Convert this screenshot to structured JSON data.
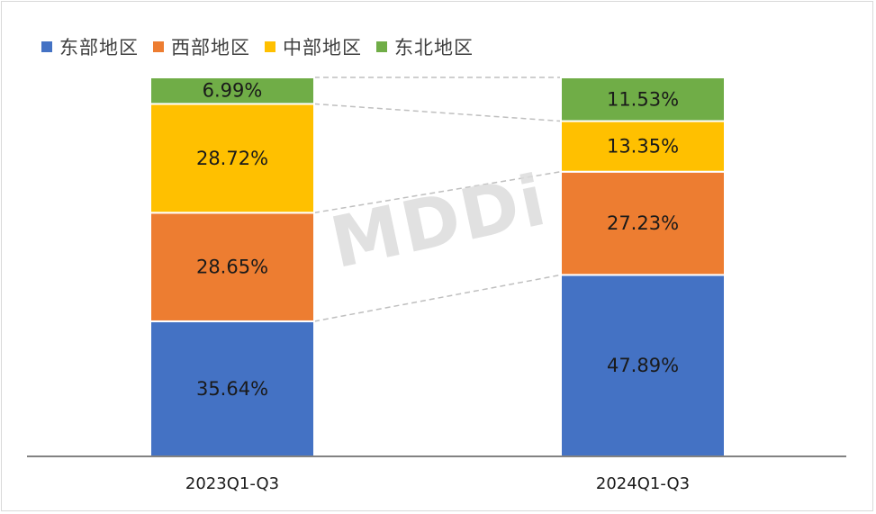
{
  "chart_data": {
    "type": "bar",
    "stacked": true,
    "normalized_percent": true,
    "categories": [
      "2023Q1-Q3",
      "2024Q1-Q3"
    ],
    "series": [
      {
        "name": "东部地区",
        "color": "#4472c4",
        "values": [
          35.64,
          47.89
        ],
        "labels": [
          "35.64%",
          "47.89%"
        ]
      },
      {
        "name": "西部地区",
        "color": "#ed7d31",
        "values": [
          28.65,
          27.23
        ],
        "labels": [
          "28.65%",
          "27.23%"
        ]
      },
      {
        "name": "中部地区",
        "color": "#ffc000",
        "values": [
          28.72,
          13.35
        ],
        "labels": [
          "28.72%",
          "13.35%"
        ]
      },
      {
        "name": "东北地区",
        "color": "#70ad47",
        "values": [
          6.99,
          11.53
        ],
        "labels": [
          "6.99%",
          "11.53%"
        ]
      }
    ],
    "ylim": [
      0,
      100
    ],
    "legend_position": "top-left",
    "series_lines": true,
    "grid": false
  },
  "watermark": "MDDi"
}
